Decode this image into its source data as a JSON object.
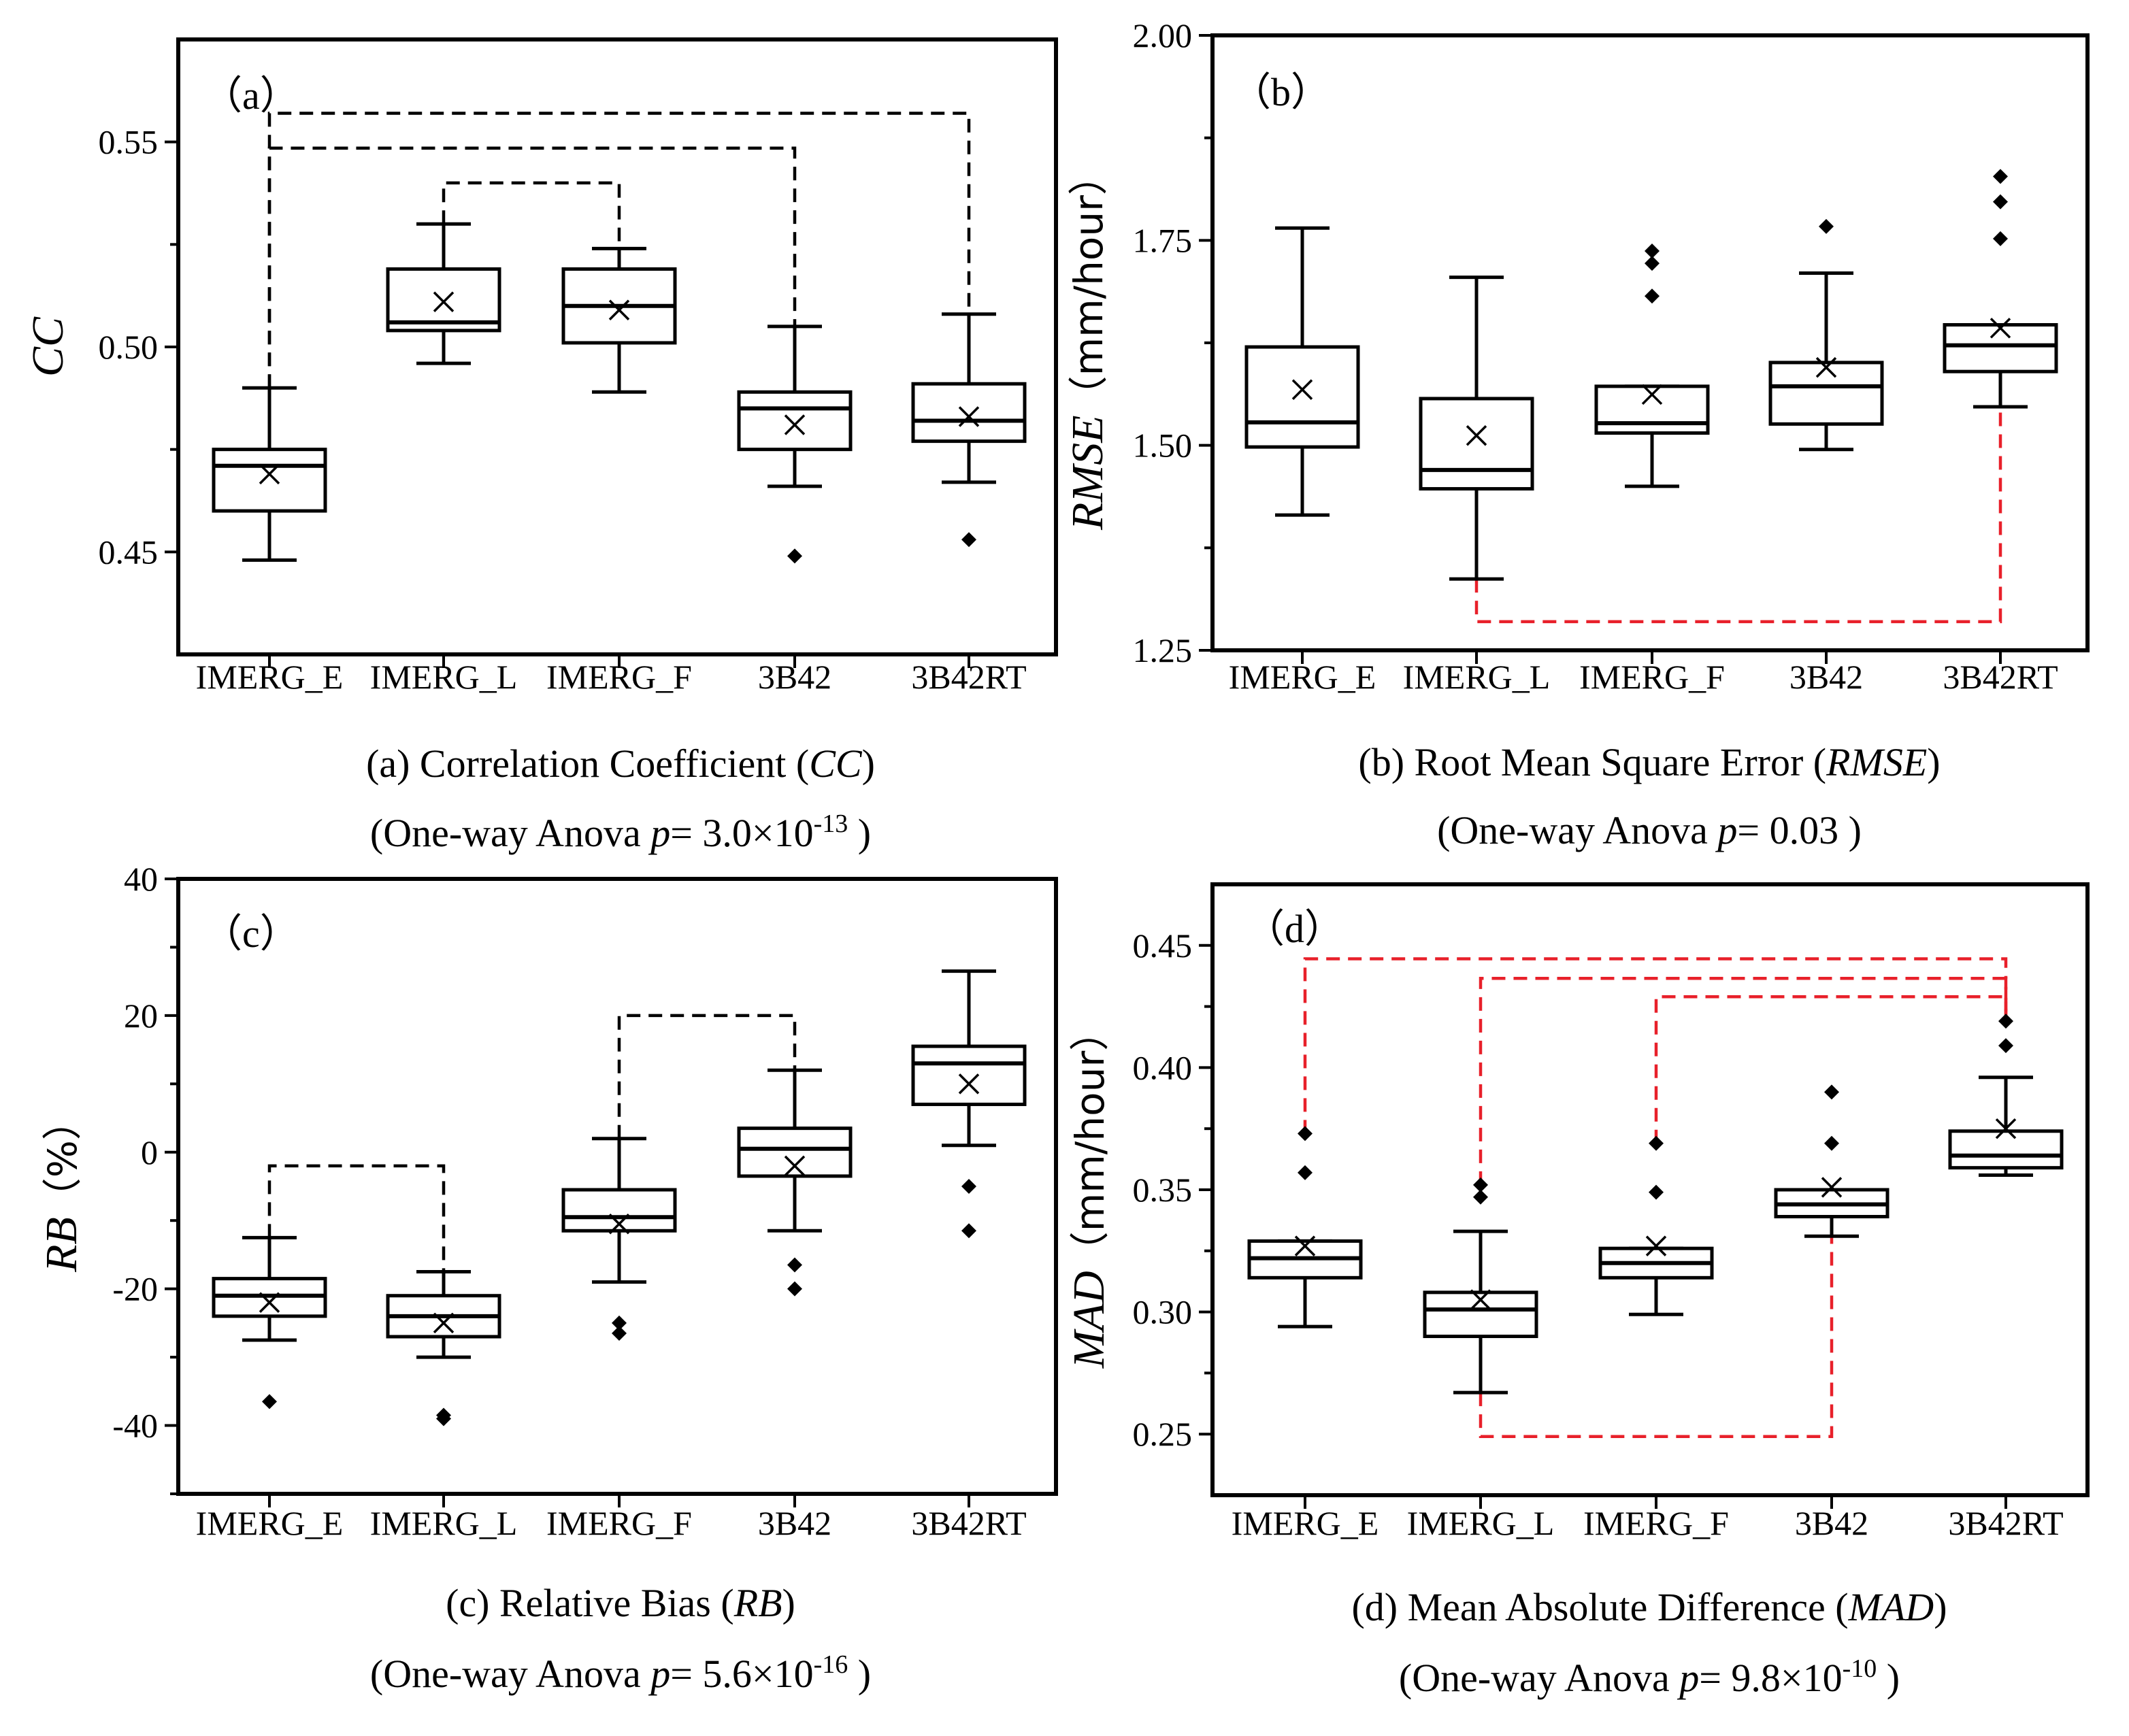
{
  "chart_data": [
    {
      "type": "box",
      "panel_label": "（a）",
      "caption": "(a) Correlation Coefficient (CC)",
      "caption_parts": [
        "(a) Correlation Coefficient (",
        "CC",
        ")"
      ],
      "anova_parts": [
        "(One-way Anova  ",
        "p",
        "= 3.0×10",
        "-13",
        " )"
      ],
      "ylabel": "CC",
      "ylabel_suffix": "",
      "ylim": [
        0.425,
        0.575
      ],
      "yticks": [
        0.45,
        0.5,
        0.55
      ],
      "ytick_labels": [
        "0.45",
        "0.50",
        "0.55"
      ],
      "minor_ticks": [
        0.475,
        0.525
      ],
      "categories": [
        "IMERG_E",
        "IMERG_L",
        "IMERG_F",
        "3B42",
        "3B42RT"
      ],
      "boxes": [
        {
          "whislo": 0.448,
          "q1": 0.46,
          "med": 0.471,
          "q3": 0.475,
          "whishi": 0.49,
          "mean": 0.469,
          "fliers": []
        },
        {
          "whislo": 0.496,
          "q1": 0.504,
          "med": 0.506,
          "q3": 0.519,
          "whishi": 0.53,
          "mean": 0.511,
          "fliers": []
        },
        {
          "whislo": 0.489,
          "q1": 0.501,
          "med": 0.51,
          "q3": 0.519,
          "whishi": 0.524,
          "mean": 0.509,
          "fliers": []
        },
        {
          "whislo": 0.466,
          "q1": 0.475,
          "med": 0.485,
          "q3": 0.489,
          "whishi": 0.505,
          "mean": 0.481,
          "fliers": [
            0.449
          ]
        },
        {
          "whislo": 0.467,
          "q1": 0.477,
          "med": 0.482,
          "q3": 0.491,
          "whishi": 0.508,
          "mean": 0.483,
          "fliers": [
            0.453
          ]
        }
      ],
      "significance": [
        {
          "from": 0,
          "to": 4,
          "top": 0.557,
          "from_y": 0.49,
          "to_y": 0.508,
          "color": "#000000",
          "side": "top"
        },
        {
          "from": 0,
          "to": 3,
          "top": 0.5485,
          "from_y": 0.49,
          "to_y": 0.505,
          "color": "#000000",
          "side": "top"
        },
        {
          "from": 1,
          "to": 2,
          "top": 0.54,
          "from_y": 0.53,
          "to_y": 0.524,
          "color": "#000000",
          "side": "top"
        }
      ]
    },
    {
      "type": "box",
      "panel_label": "（b）",
      "caption": "(b) Root Mean Square Error (RMSE)",
      "caption_parts": [
        "(b) Root Mean Square Error (",
        "RMSE",
        ")"
      ],
      "anova_parts": [
        "(One-way Anova  ",
        "p",
        "= 0.03",
        "",
        " )"
      ],
      "ylabel": "RMSE",
      "ylabel_suffix": "（mm/hour）",
      "ylim": [
        1.25,
        2.0
      ],
      "yticks": [
        1.25,
        1.5,
        1.75,
        2.0
      ],
      "ytick_labels": [
        "1.25",
        "1.50",
        "1.75",
        "2.00"
      ],
      "minor_ticks": [
        1.375,
        1.625,
        1.875
      ],
      "categories": [
        "IMERG_E",
        "IMERG_L",
        "IMERG_F",
        "3B42",
        "3B42RT"
      ],
      "boxes": [
        {
          "whislo": 1.415,
          "q1": 1.498,
          "med": 1.528,
          "q3": 1.62,
          "whishi": 1.765,
          "mean": 1.568,
          "fliers": []
        },
        {
          "whislo": 1.337,
          "q1": 1.447,
          "med": 1.47,
          "q3": 1.557,
          "whishi": 1.705,
          "mean": 1.512,
          "fliers": []
        },
        {
          "whislo": 1.45,
          "q1": 1.515,
          "med": 1.527,
          "q3": 1.572,
          "whishi": 1.572,
          "mean": 1.562,
          "fliers": [
            1.682,
            1.722,
            1.737
          ]
        },
        {
          "whislo": 1.495,
          "q1": 1.526,
          "med": 1.572,
          "q3": 1.601,
          "whishi": 1.71,
          "mean": 1.595,
          "fliers": [
            1.767
          ]
        },
        {
          "whislo": 1.547,
          "q1": 1.59,
          "med": 1.622,
          "q3": 1.647,
          "whishi": 1.647,
          "mean": 1.643,
          "fliers": [
            1.752,
            1.797,
            1.828
          ]
        }
      ],
      "significance": [
        {
          "from": 1,
          "to": 4,
          "top": 1.285,
          "from_y": 1.337,
          "to_y": 1.547,
          "color": "#e8202a",
          "side": "bottom"
        }
      ]
    },
    {
      "type": "box",
      "panel_label": "（c）",
      "caption": "(c) Relative Bias (RB)",
      "caption_parts": [
        "(c) Relative Bias (",
        "RB",
        ")"
      ],
      "anova_parts": [
        "(One-way Anova  ",
        "p",
        "= 5.6×10",
        "-16",
        " )"
      ],
      "ylabel": "RB",
      "ylabel_suffix": "（%）",
      "ylim": [
        -50,
        40
      ],
      "yticks": [
        -40,
        -20,
        0,
        20,
        40
      ],
      "ytick_labels": [
        "-40",
        "-20",
        "0",
        "20",
        "40"
      ],
      "minor_ticks": [
        -50,
        -30,
        -10,
        10,
        30
      ],
      "categories": [
        "IMERG_E",
        "IMERG_L",
        "IMERG_F",
        "3B42",
        "3B42RT"
      ],
      "boxes": [
        {
          "whislo": -27.5,
          "q1": -24.0,
          "med": -21.0,
          "q3": -18.5,
          "whishi": -12.5,
          "mean": -22.0,
          "fliers": [
            -36.5
          ]
        },
        {
          "whislo": -30.0,
          "q1": -27.0,
          "med": -24.0,
          "q3": -21.0,
          "whishi": -17.5,
          "mean": -25.0,
          "fliers": [
            -39.0,
            -38.5
          ]
        },
        {
          "whislo": -19.0,
          "q1": -11.5,
          "med": -9.5,
          "q3": -5.5,
          "whishi": 2.0,
          "mean": -10.5,
          "fliers": [
            -26.5,
            -25.0
          ]
        },
        {
          "whislo": -11.5,
          "q1": -3.5,
          "med": 0.5,
          "q3": 3.5,
          "whishi": 12.0,
          "mean": -2.0,
          "fliers": [
            -16.5,
            -20.0
          ]
        },
        {
          "whislo": 1.0,
          "q1": 7.0,
          "med": 13.0,
          "q3": 15.5,
          "whishi": 26.5,
          "mean": 10.0,
          "fliers": [
            -5.0,
            -11.5
          ]
        }
      ],
      "significance": [
        {
          "from": 0,
          "to": 1,
          "top": -2.0,
          "from_y": -12.5,
          "to_y": -17.5,
          "color": "#000000",
          "side": "top"
        },
        {
          "from": 2,
          "to": 3,
          "top": 20.0,
          "from_y": 2.0,
          "to_y": 12.0,
          "color": "#000000",
          "side": "top"
        }
      ]
    },
    {
      "type": "box",
      "panel_label": "（d）",
      "caption": "(d) Mean Absolute Difference (MAD)",
      "caption_parts": [
        "(d) Mean Absolute Difference (",
        "MAD",
        ")"
      ],
      "anova_parts": [
        "(One-way Anova  ",
        "p",
        "= 9.8×10",
        "-10",
        " )"
      ],
      "ylabel": "MAD",
      "ylabel_suffix": "（mm/hour）",
      "ylim": [
        0.225,
        0.475
      ],
      "yticks": [
        0.25,
        0.3,
        0.35,
        0.4,
        0.45
      ],
      "ytick_labels": [
        "0.25",
        "0.30",
        "0.35",
        "0.40",
        "0.45"
      ],
      "minor_ticks": [
        0.275,
        0.325,
        0.375,
        0.425
      ],
      "categories": [
        "IMERG_E",
        "IMERG_L",
        "IMERG_F",
        "3B42",
        "3B42RT"
      ],
      "boxes": [
        {
          "whislo": 0.294,
          "q1": 0.314,
          "med": 0.322,
          "q3": 0.329,
          "whishi": 0.329,
          "mean": 0.327,
          "fliers": [
            0.357,
            0.373
          ]
        },
        {
          "whislo": 0.267,
          "q1": 0.29,
          "med": 0.301,
          "q3": 0.308,
          "whishi": 0.333,
          "mean": 0.305,
          "fliers": [
            0.347,
            0.352
          ]
        },
        {
          "whislo": 0.299,
          "q1": 0.314,
          "med": 0.32,
          "q3": 0.326,
          "whishi": 0.326,
          "mean": 0.327,
          "fliers": [
            0.349,
            0.369
          ]
        },
        {
          "whislo": 0.331,
          "q1": 0.339,
          "med": 0.344,
          "q3": 0.35,
          "whishi": 0.35,
          "mean": 0.351,
          "fliers": [
            0.369,
            0.39
          ]
        },
        {
          "whislo": 0.356,
          "q1": 0.359,
          "med": 0.364,
          "q3": 0.374,
          "whishi": 0.396,
          "mean": 0.375,
          "fliers": [
            0.409,
            0.419
          ]
        }
      ],
      "significance": [
        {
          "from": 0,
          "to": 4,
          "top": 0.4445,
          "from_y": 0.373,
          "to_y": 0.419,
          "color": "#e8202a",
          "side": "top"
        },
        {
          "from": 1,
          "to": 4,
          "top": 0.4365,
          "from_y": 0.352,
          "to_y": 0.419,
          "color": "#e8202a",
          "side": "top"
        },
        {
          "from": 2,
          "to": 4,
          "top": 0.429,
          "from_y": 0.369,
          "to_y": 0.419,
          "color": "#e8202a",
          "side": "top"
        },
        {
          "from": 1,
          "to": 3,
          "top": 0.249,
          "from_y": 0.267,
          "to_y": 0.331,
          "color": "#e8202a",
          "side": "bottom"
        }
      ]
    }
  ]
}
